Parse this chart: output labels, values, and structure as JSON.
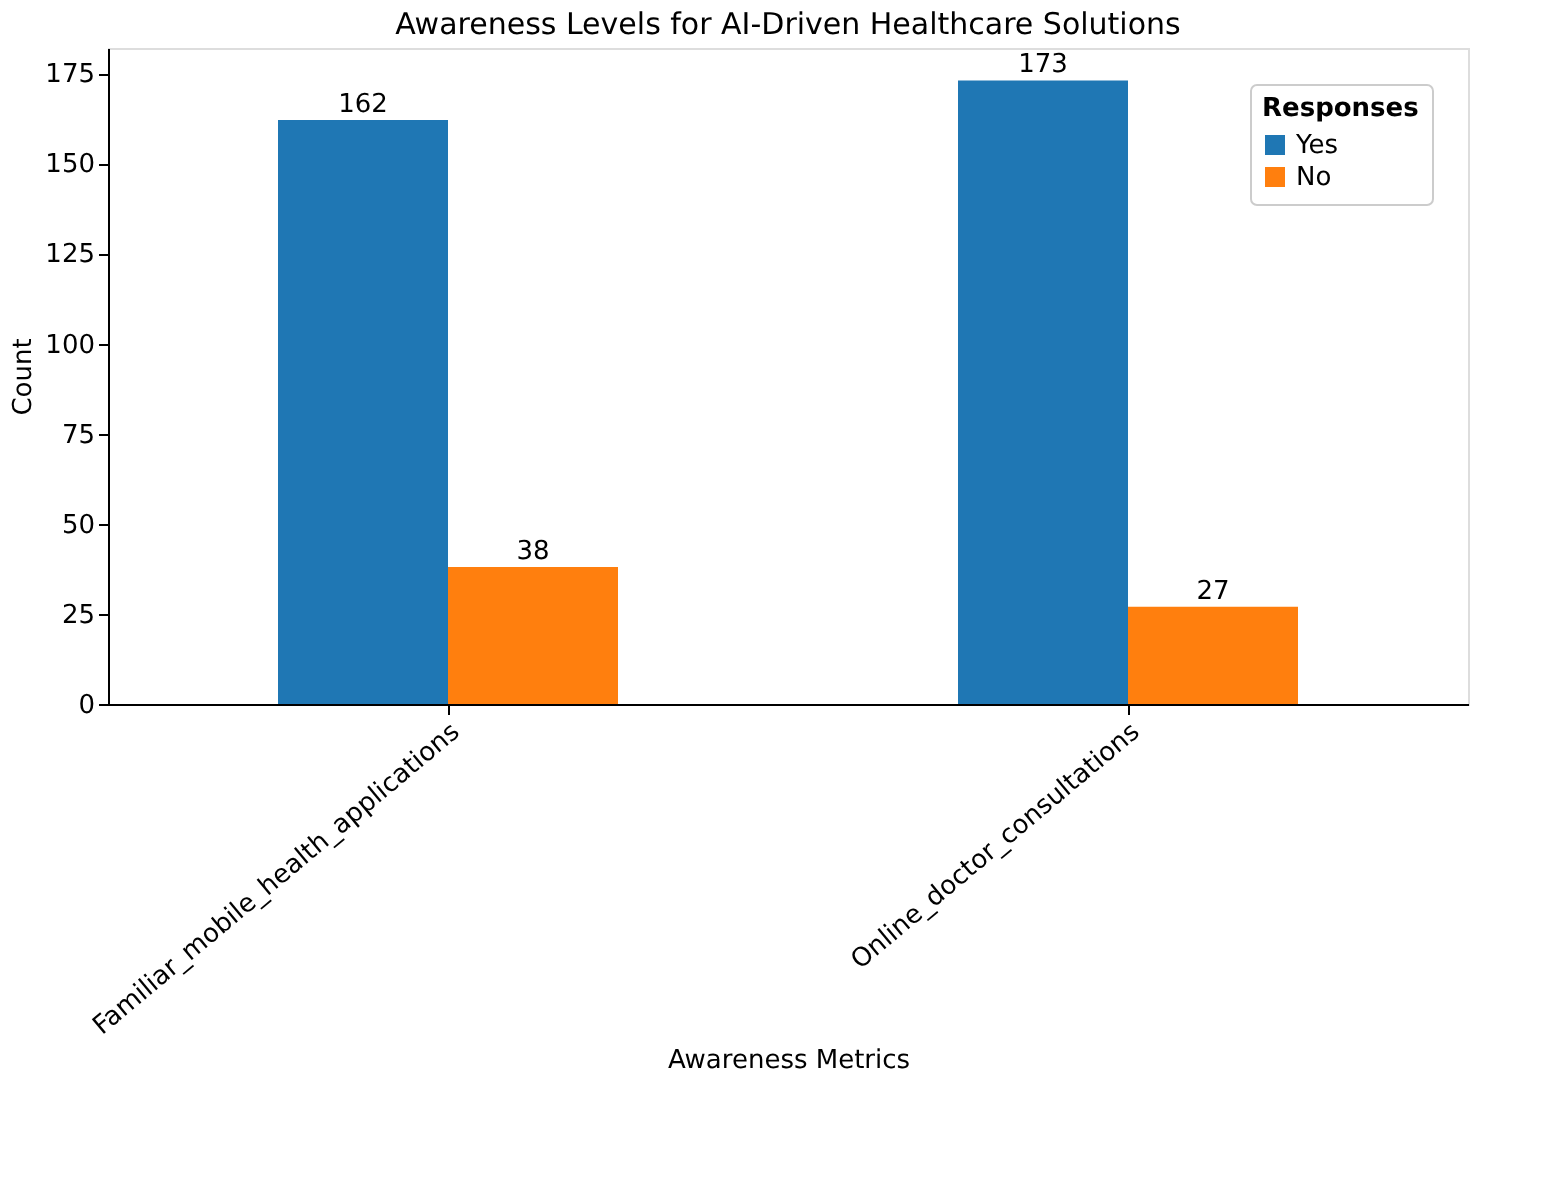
{
  "chart_data": {
    "type": "bar",
    "title": "Awareness Levels for AI-Driven Healthcare Solutions",
    "xlabel": "Awareness Metrics",
    "ylabel": "Count",
    "legend_title": "Responses",
    "categories": [
      "Familiar_mobile_health_applications",
      "Online_doctor_consultations"
    ],
    "series": [
      {
        "name": "Yes",
        "color": "#1f77b4",
        "values": [
          162,
          173
        ]
      },
      {
        "name": "No",
        "color": "#ff7f0e",
        "values": [
          38,
          27
        ]
      }
    ],
    "ylim": [
      0,
      182
    ],
    "yticks": [
      0,
      25,
      50,
      75,
      100,
      125,
      150,
      175
    ],
    "grid": false,
    "legend": "top right",
    "data_labels": true
  }
}
